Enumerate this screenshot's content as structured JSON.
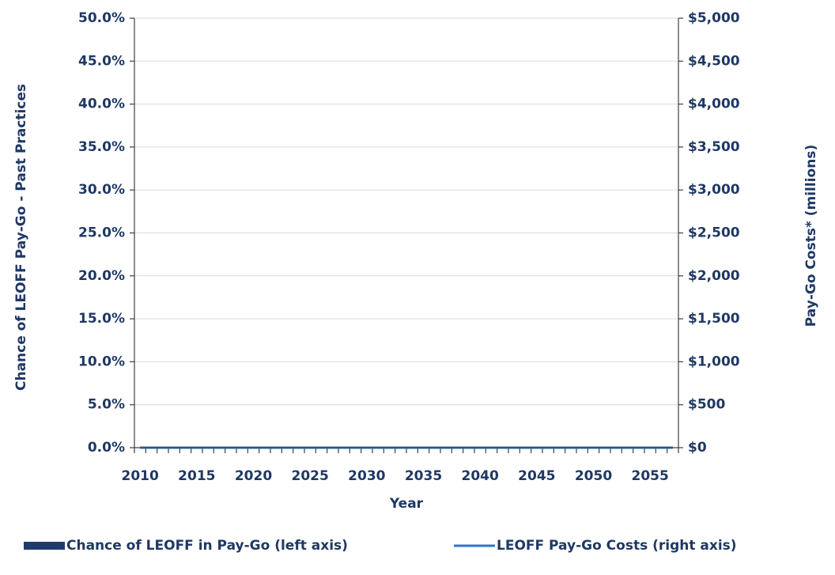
{
  "chart_data": {
    "type": "combo",
    "categories": [
      2010,
      null,
      null,
      null,
      null,
      2015,
      null,
      null,
      null,
      null,
      2020,
      null,
      null,
      null,
      null,
      2025,
      null,
      null,
      null,
      null,
      2030,
      null,
      null,
      null,
      null,
      2035,
      null,
      null,
      null,
      null,
      2040,
      null,
      null,
      null,
      null,
      2045,
      null,
      null,
      null,
      null,
      2050,
      null,
      null,
      null,
      null,
      2055,
      null,
      null
    ],
    "x_label": "Year",
    "y_label": "Chance of LEOFF Pay-Go - Past Practices",
    "y2_label": "Pay-Go Costs* (millions)",
    "ylim": [
      0,
      50
    ],
    "yticks": [
      {
        "value": 0,
        "label": "0.0%"
      },
      {
        "value": 5,
        "label": "5.0%"
      },
      {
        "value": 10,
        "label": "10.0%"
      },
      {
        "value": 15,
        "label": "15.0%"
      },
      {
        "value": 20,
        "label": "20.0%"
      },
      {
        "value": 25,
        "label": "25.0%"
      },
      {
        "value": 30,
        "label": "30.0%"
      },
      {
        "value": 35,
        "label": "35.0%"
      },
      {
        "value": 40,
        "label": "40.0%"
      },
      {
        "value": 45,
        "label": "45.0%"
      },
      {
        "value": 50,
        "label": "50.0%"
      }
    ],
    "y2lim": [
      0,
      5000
    ],
    "y2ticks": [
      {
        "value": 0,
        "label": "$0"
      },
      {
        "value": 500,
        "label": "$500"
      },
      {
        "value": 1000,
        "label": "$1,000"
      },
      {
        "value": 1500,
        "label": "$1,500"
      },
      {
        "value": 2000,
        "label": "$2,000"
      },
      {
        "value": 2500,
        "label": "$2,500"
      },
      {
        "value": 3000,
        "label": "$3,000"
      },
      {
        "value": 3500,
        "label": "$3,500"
      },
      {
        "value": 4000,
        "label": "$4,000"
      },
      {
        "value": 4500,
        "label": "$4,500"
      },
      {
        "value": 5000,
        "label": "$5,000"
      }
    ],
    "grid": true,
    "legend": "bottom",
    "series": [
      {
        "name": "Chance of LEOFF in Pay-Go (left axis)",
        "type": "bar",
        "color": "#1f3b6e",
        "values": [
          0,
          0,
          0,
          0,
          0,
          0,
          0,
          0,
          0,
          0,
          0,
          0,
          0,
          0,
          0,
          0,
          0,
          0,
          0,
          0,
          0,
          0,
          0,
          0,
          0,
          0,
          0,
          0,
          0,
          0,
          0,
          0,
          0,
          0,
          0,
          0,
          0,
          0,
          0,
          0,
          0,
          0,
          0,
          0,
          0,
          0,
          0,
          0
        ]
      },
      {
        "name": "LEOFF Pay-Go Costs (right axis)",
        "type": "line",
        "axis": "y2",
        "color": "#2e75c8",
        "values": [
          0,
          0,
          0,
          0,
          0,
          0,
          0,
          0,
          0,
          0,
          0,
          0,
          0,
          0,
          0,
          0,
          0,
          0,
          0,
          0,
          0,
          0,
          0,
          0,
          0,
          0,
          0,
          0,
          0,
          0,
          0,
          0,
          0,
          0,
          0,
          0,
          0,
          0,
          0,
          0,
          0,
          0,
          0,
          0,
          0,
          0,
          0,
          0
        ]
      }
    ]
  }
}
